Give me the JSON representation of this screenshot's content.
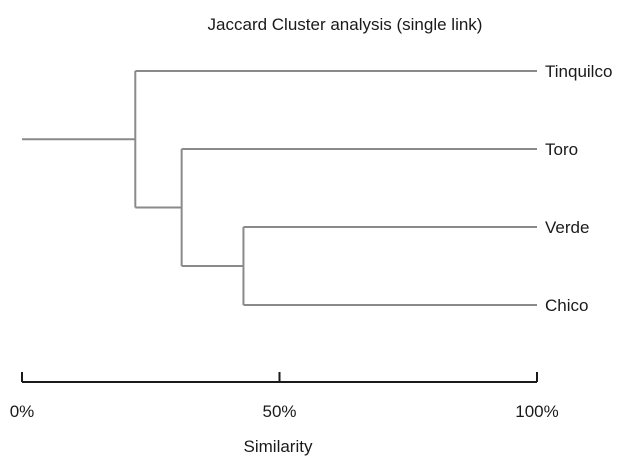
{
  "chart_data": {
    "type": "dendrogram",
    "title": "Jaccard Cluster analysis (single link)",
    "xlabel": "Similarity",
    "xlim": [
      0,
      100
    ],
    "x_unit": "percent",
    "tick_labels": [
      "0%",
      "50%",
      "100%"
    ],
    "tick_values": [
      0,
      50,
      100
    ],
    "leaves": [
      "Tinquilco",
      "Toro",
      "Verde",
      "Chico"
    ],
    "merges": [
      {
        "members": [
          "Verde",
          "Chico"
        ],
        "similarity": 43
      },
      {
        "members": [
          "Toro",
          "Verde",
          "Chico"
        ],
        "similarity": 31
      },
      {
        "members": [
          "Tinquilco",
          "Toro",
          "Verde",
          "Chico"
        ],
        "similarity": 22
      }
    ],
    "line_color": "#8a8a8a",
    "axis_color": "#1a1a1a",
    "grid": false
  }
}
